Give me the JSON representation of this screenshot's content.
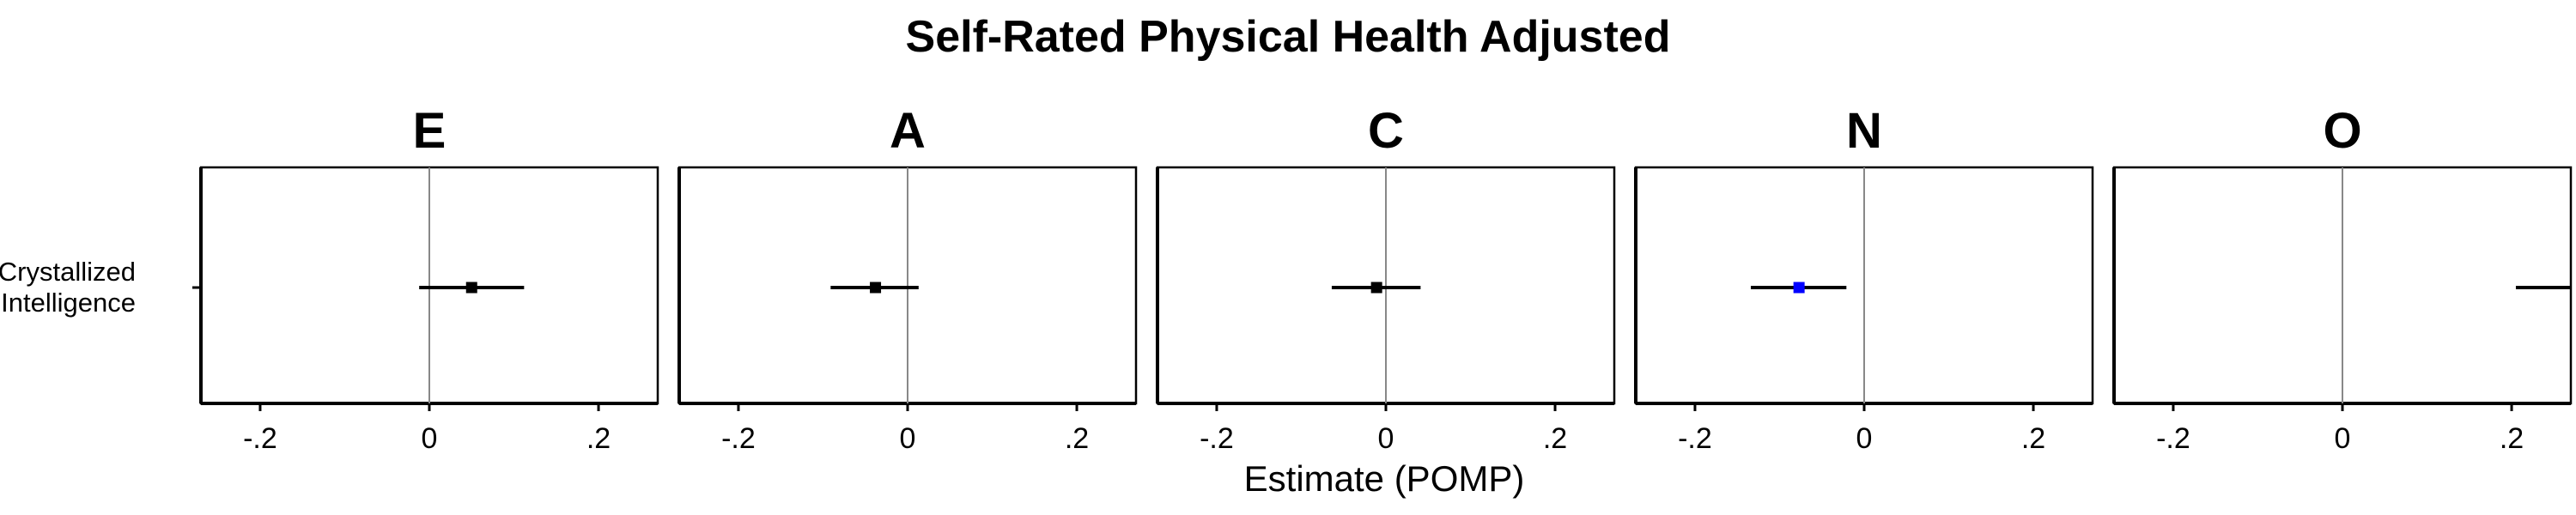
{
  "chart_data": {
    "type": "forest",
    "title": "Self-Rated Physical Health Adjusted",
    "xlabel": "Estimate (POMP)",
    "ylabel": "",
    "xlim": [
      -0.27,
      0.27
    ],
    "x_ticks": [
      {
        "value": -0.2,
        "label": "-.2"
      },
      {
        "value": 0,
        "label": "0"
      },
      {
        "value": 0.2,
        "label": "0.2"
      }
    ],
    "x_tick_labels": [
      "-.2",
      "0",
      ".2"
    ],
    "reference_line": 0,
    "y_categories": [
      {
        "lines": [
          "Crystallized",
          "Intelligence"
        ]
      }
    ],
    "panels": [
      {
        "facet": "E",
        "points": [
          {
            "category": 0,
            "estimate": 0.05,
            "ci_low": -0.012,
            "ci_high": 0.112,
            "color": "#000000"
          }
        ]
      },
      {
        "facet": "A",
        "points": [
          {
            "category": 0,
            "estimate": -0.038,
            "ci_low": -0.091,
            "ci_high": 0.013,
            "color": "#000000"
          }
        ]
      },
      {
        "facet": "C",
        "points": [
          {
            "category": 0,
            "estimate": -0.011,
            "ci_low": -0.064,
            "ci_high": 0.041,
            "color": "#000000"
          }
        ]
      },
      {
        "facet": "N",
        "points": [
          {
            "category": 0,
            "estimate": -0.077,
            "ci_low": -0.134,
            "ci_high": -0.021,
            "color": "#0000ff"
          }
        ]
      },
      {
        "facet": "O",
        "points": [
          {
            "category": 0,
            "estimate": null,
            "ci_low": 0.205,
            "ci_high": 0.27,
            "color": "#000000"
          }
        ]
      }
    ],
    "grid": false,
    "legend": "none"
  }
}
